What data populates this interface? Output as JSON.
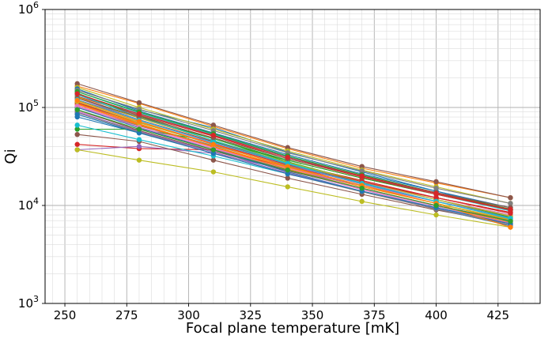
{
  "chart_data": {
    "type": "line",
    "title": "",
    "xlabel": "Focal plane temperature [mK]",
    "ylabel": "Qi",
    "xlim": [
      242,
      442
    ],
    "ylim": [
      1000,
      1000000
    ],
    "yscale": "log",
    "grid": "major and minor",
    "x": [
      255,
      280,
      310,
      340,
      370,
      400,
      430
    ],
    "x_tick_labels": [
      "250",
      "275",
      "300",
      "325",
      "350",
      "375",
      "400",
      "425"
    ],
    "x_tick_values": [
      250,
      275,
      300,
      325,
      350,
      375,
      400,
      425
    ],
    "y_tick_values": [
      1000,
      10000,
      100000,
      1000000
    ],
    "y_tick_labels": [
      {
        "base": "10",
        "exp": "3"
      },
      {
        "base": "10",
        "exp": "4"
      },
      {
        "base": "10",
        "exp": "5"
      },
      {
        "base": "10",
        "exp": "6"
      }
    ],
    "series": [
      {
        "color": "#1f77b4",
        "values": [
          150000,
          95000,
          62000,
          35000,
          22000,
          14000,
          9000
        ]
      },
      {
        "color": "#ff7f0e",
        "values": [
          165000,
          110000,
          64000,
          38000,
          24000,
          17000,
          12000
        ]
      },
      {
        "color": "#2ca02c",
        "values": [
          125000,
          78000,
          48000,
          29000,
          19000,
          13000,
          9000
        ]
      },
      {
        "color": "#d62728",
        "values": [
          120000,
          75000,
          45000,
          27000,
          18000,
          12000,
          8500
        ]
      },
      {
        "color": "#9467bd",
        "values": [
          110000,
          70000,
          42000,
          25000,
          16000,
          11000,
          7500
        ]
      },
      {
        "color": "#8c564b",
        "values": [
          175000,
          112000,
          66000,
          39000,
          25000,
          17500,
          12000
        ]
      },
      {
        "color": "#e377c2",
        "values": [
          105000,
          65000,
          39000,
          23000,
          14500,
          9500,
          6500
        ]
      },
      {
        "color": "#7f7f7f",
        "values": [
          135000,
          85000,
          52000,
          31000,
          20000,
          13500,
          9500
        ]
      },
      {
        "color": "#bcbd22",
        "values": [
          160000,
          100000,
          60000,
          36000,
          23000,
          15500,
          10500
        ]
      },
      {
        "color": "#17becf",
        "values": [
          145000,
          88000,
          53000,
          31500,
          20000,
          13000,
          8800
        ]
      },
      {
        "color": "#1f77b4",
        "values": [
          80000,
          55000,
          36000,
          23000,
          15000,
          10000,
          7000
        ]
      },
      {
        "color": "#ff7f0e",
        "values": [
          115000,
          68000,
          40000,
          24000,
          15500,
          10500,
          7200
        ]
      },
      {
        "color": "#2ca02c",
        "values": [
          60000,
          60000,
          45000,
          29000,
          19000,
          13000,
          9000
        ]
      },
      {
        "color": "#d62728",
        "values": [
          42000,
          38000,
          37000,
          25000,
          17000,
          12000,
          8500
        ]
      },
      {
        "color": "#9467bd",
        "values": [
          37000,
          40000,
          34000,
          23000,
          16000,
          11000,
          7800
        ]
      },
      {
        "color": "#8c564b",
        "values": [
          53000,
          45000,
          29000,
          19000,
          13000,
          9000,
          6500
        ]
      },
      {
        "color": "#e377c2",
        "values": [
          92000,
          60000,
          38000,
          24000,
          16000,
          11000,
          7800
        ]
      },
      {
        "color": "#7f7f7f",
        "values": [
          100000,
          65000,
          41000,
          25500,
          17000,
          11500,
          8000
        ]
      },
      {
        "color": "#bcbd22",
        "values": [
          37000,
          29000,
          22000,
          15500,
          11000,
          8000,
          6000
        ]
      },
      {
        "color": "#17becf",
        "values": [
          66000,
          47000,
          32000,
          21000,
          14000,
          9500,
          6800
        ]
      },
      {
        "color": "#1f77b4",
        "values": [
          155000,
          92000,
          55000,
          33000,
          21000,
          14000,
          9500
        ]
      },
      {
        "color": "#ff7f0e",
        "values": [
          108000,
          66000,
          40000,
          24500,
          16000,
          10500,
          7000
        ]
      },
      {
        "color": "#2ca02c",
        "values": [
          140000,
          82000,
          48000,
          28000,
          17500,
          11500,
          7600
        ]
      },
      {
        "color": "#d62728",
        "values": [
          130000,
          83000,
          51000,
          30000,
          19500,
          13000,
          9000
        ]
      },
      {
        "color": "#9467bd",
        "values": [
          125000,
          75000,
          44000,
          26000,
          16500,
          11000,
          7300
        ]
      },
      {
        "color": "#8c564b",
        "values": [
          95000,
          58000,
          36000,
          22500,
          15000,
          10000,
          7000
        ]
      },
      {
        "color": "#e377c2",
        "values": [
          118000,
          72000,
          43000,
          26000,
          17000,
          11500,
          8000
        ]
      },
      {
        "color": "#7f7f7f",
        "values": [
          150000,
          96000,
          58000,
          34500,
          22500,
          15000,
          10500
        ]
      },
      {
        "color": "#bcbd22",
        "values": [
          128000,
          78000,
          46000,
          27500,
          17500,
          11500,
          7800
        ]
      },
      {
        "color": "#17becf",
        "values": [
          135000,
          80000,
          46000,
          27000,
          17000,
          11000,
          7400
        ]
      },
      {
        "color": "#1f77b4",
        "values": [
          100000,
          62000,
          37000,
          22000,
          14000,
          9200,
          6200
        ]
      },
      {
        "color": "#ff7f0e",
        "values": [
          110000,
          67000,
          39500,
          23500,
          15000,
          10000,
          6700
        ]
      },
      {
        "color": "#2ca02c",
        "values": [
          145000,
          90000,
          54000,
          32000,
          20500,
          13500,
          9200
        ]
      },
      {
        "color": "#d62728",
        "values": [
          112000,
          70000,
          42500,
          26000,
          17500,
          12000,
          8300
        ]
      },
      {
        "color": "#9467bd",
        "values": [
          90000,
          57000,
          35000,
          21500,
          14000,
          9300,
          6300
        ]
      },
      {
        "color": "#8c564b",
        "values": [
          125000,
          80000,
          49000,
          30000,
          20000,
          13500,
          9500
        ]
      },
      {
        "color": "#e377c2",
        "values": [
          103000,
          63000,
          38000,
          23000,
          14800,
          9800,
          6600
        ]
      },
      {
        "color": "#7f7f7f",
        "values": [
          88000,
          56000,
          34000,
          21000,
          13800,
          9200,
          6300
        ]
      },
      {
        "color": "#bcbd22",
        "values": [
          115000,
          70000,
          42000,
          25000,
          16000,
          10500,
          7100
        ]
      },
      {
        "color": "#17becf",
        "values": [
          120000,
          74000,
          44000,
          26500,
          16800,
          11000,
          7300
        ]
      },
      {
        "color": "#1f77b4",
        "values": [
          85000,
          55000,
          34000,
          21000,
          14000,
          9500,
          6500
        ]
      },
      {
        "color": "#ff7f0e",
        "values": [
          118000,
          72000,
          42000,
          25000,
          16000,
          10500,
          6000
        ]
      },
      {
        "color": "#2ca02c",
        "values": [
          95000,
          60000,
          37000,
          23000,
          15000,
          10000,
          6900
        ]
      },
      {
        "color": "#d62728",
        "values": [
          138000,
          86000,
          52000,
          31000,
          20000,
          13300,
          9100
        ]
      }
    ]
  }
}
